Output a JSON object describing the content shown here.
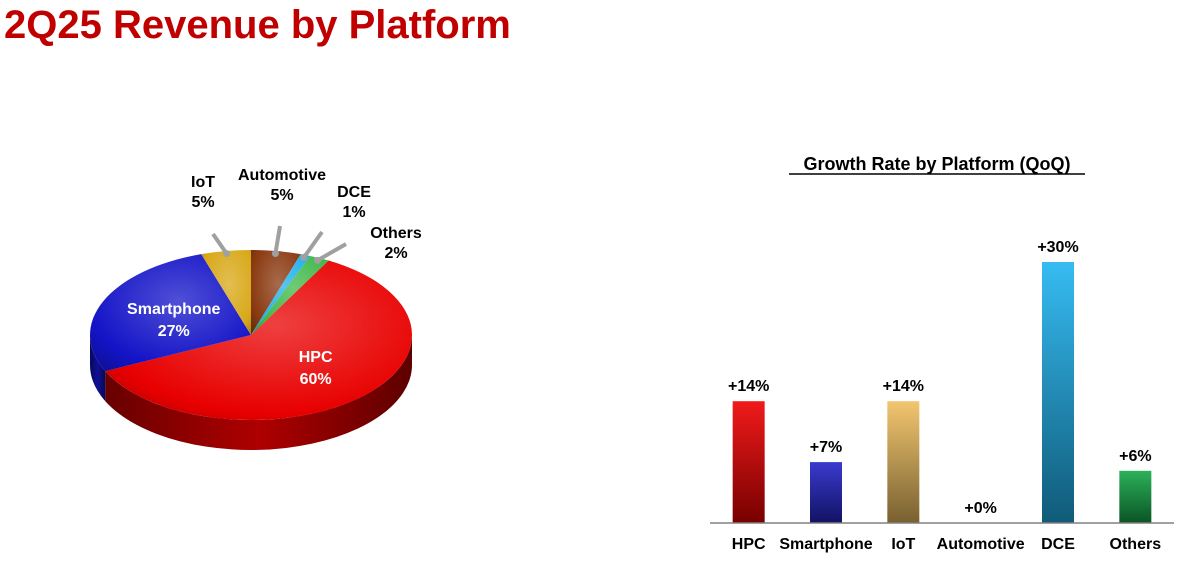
{
  "title": "2Q25 Revenue by Platform",
  "chart_data": [
    {
      "type": "pie",
      "categories": [
        "HPC",
        "Smartphone",
        "IoT",
        "Automotive",
        "DCE",
        "Others"
      ],
      "values": [
        60,
        27,
        5,
        5,
        1,
        2
      ],
      "value_labels": [
        "60%",
        "27%",
        "5%",
        "5%",
        "1%",
        "2%"
      ],
      "colors": [
        "#e80000",
        "#1414c8",
        "#d8a818",
        "#8a3a10",
        "#20b0ec",
        "#40b848"
      ]
    },
    {
      "type": "bar",
      "title": "Growth Rate by Platform (QoQ)",
      "categories": [
        "HPC",
        "Smartphone",
        "IoT",
        "Automotive",
        "DCE",
        "Others"
      ],
      "values": [
        14,
        7,
        14,
        0,
        30,
        6
      ],
      "value_labels": [
        "+14%",
        "+7%",
        "+14%",
        "+0%",
        "+30%",
        "+6%"
      ],
      "colors": [
        "#ee0000",
        "#2424c8",
        "#f0c060",
        "#999999",
        "#20b4f0",
        "#14a848"
      ]
    }
  ]
}
